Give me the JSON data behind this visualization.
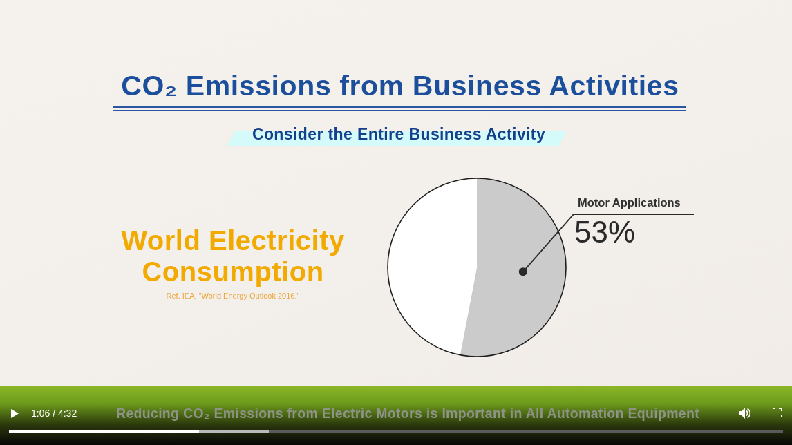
{
  "chart_data": {
    "type": "pie",
    "title": "CO₂ Emissions from Business Activities",
    "subtitle": "Consider the Entire Business Activity",
    "categories": [
      "Motor Applications",
      null
    ],
    "values": [
      53,
      47
    ],
    "colors": [
      "#cbcbcb",
      "#ffffff"
    ],
    "value_labels": [
      "53%",
      null
    ],
    "annotations": [
      "World Electricity Consumption",
      "Ref. IEA, \"World Energy Outlook 2016.\"",
      "1:06 / 4:32",
      "Reducing CO₂ Emissions from Electric Motors is Important in All Automation Equipment"
    ]
  }
}
